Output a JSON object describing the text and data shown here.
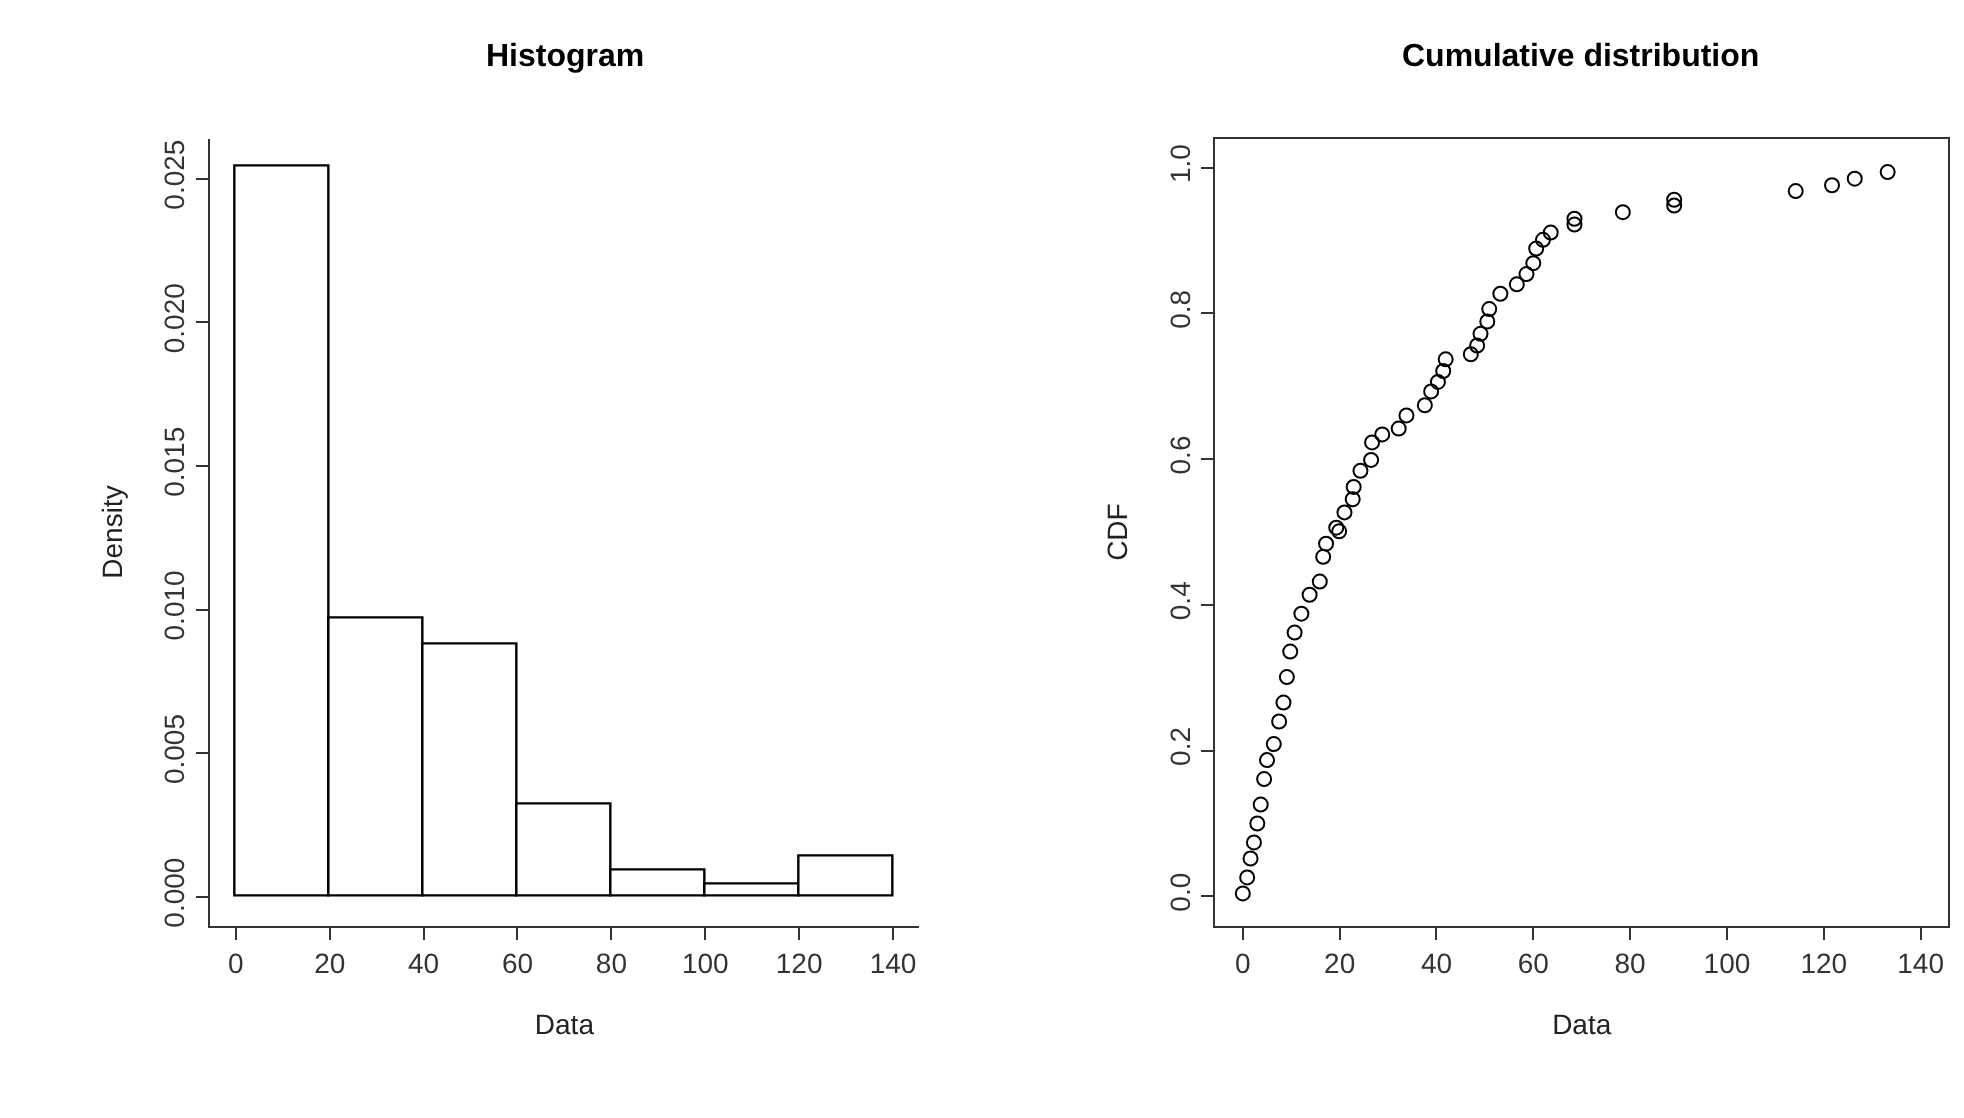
{
  "chart_data": [
    {
      "type": "histogram",
      "title": "Histogram",
      "xlabel": "Data",
      "ylabel": "Density",
      "color": "#ffffff",
      "bins": [
        0,
        20,
        40,
        60,
        80,
        100,
        120,
        140
      ],
      "values": [
        0.0254,
        0.0097,
        0.0088,
        0.0032,
        0.0009,
        0.0004,
        0.0014
      ],
      "xlim": [
        -5.6,
        145.6
      ],
      "ylim": [
        -0.001,
        0.0264
      ],
      "xticks": [
        0,
        20,
        40,
        60,
        80,
        100,
        120,
        140
      ],
      "yticks": [
        {
          "value": 0,
          "label": "0.000"
        },
        {
          "value": 0.005,
          "label": "0.005"
        },
        {
          "value": 0.01,
          "label": "0.010"
        },
        {
          "value": 0.015,
          "label": "0.015"
        },
        {
          "value": 0.02,
          "label": "0.020"
        },
        {
          "value": 0.025,
          "label": "0.025"
        }
      ]
    },
    {
      "type": "scatter",
      "title": "Cumulative distribution",
      "xlabel": "Data",
      "ylabel": "CDF",
      "marker": "circle",
      "series": [
        {
          "color": "#000000",
          "x": [
            0,
            0.9,
            1.6,
            2.3,
            3.0,
            3.7,
            4.4,
            5.0,
            6.4,
            7.5,
            8.4,
            9.1,
            9.8,
            10.7,
            12.1,
            13.8,
            15.9,
            16.6,
            17.2,
            19.3,
            19.9,
            21.0,
            22.7,
            22.9,
            24.3,
            26.5,
            26.7,
            28.8,
            32.2,
            33.8,
            37.6,
            38.9,
            40.3,
            41.4,
            41.9,
            47.1,
            48.4,
            49.1,
            50.5,
            50.9,
            53.2,
            56.6,
            58.6,
            60.0,
            60.6,
            62.0,
            63.6,
            68.5,
            68.5,
            78.5,
            89.1,
            89.1,
            114.2,
            121.7,
            126.4,
            133.2
          ],
          "values": [
            0.004,
            0.026,
            0.052,
            0.074,
            0.1,
            0.126,
            0.161,
            0.187,
            0.209,
            0.24,
            0.266,
            0.301,
            0.336,
            0.362,
            0.388,
            0.414,
            0.432,
            0.466,
            0.484,
            0.506,
            0.501,
            0.527,
            0.545,
            0.562,
            0.584,
            0.599,
            0.623,
            0.634,
            0.642,
            0.66,
            0.674,
            0.693,
            0.706,
            0.721,
            0.737,
            0.744,
            0.756,
            0.772,
            0.789,
            0.806,
            0.827,
            0.84,
            0.854,
            0.869,
            0.889,
            0.901,
            0.911,
            0.922,
            0.93,
            0.939,
            0.948,
            0.956,
            0.968,
            0.976,
            0.985,
            0.994
          ]
        }
      ],
      "xlim": [
        -5.7,
        145.7
      ],
      "ylim": [
        -0.04,
        1.04
      ],
      "xticks": [
        0,
        20,
        40,
        60,
        80,
        100,
        120,
        140
      ],
      "yticks": [
        {
          "value": 0,
          "label": "0.0"
        },
        {
          "value": 0.2,
          "label": "0.2"
        },
        {
          "value": 0.4,
          "label": "0.4"
        },
        {
          "value": 0.6,
          "label": "0.6"
        },
        {
          "value": 0.8,
          "label": "0.8"
        },
        {
          "value": 1,
          "label": "1.0"
        }
      ]
    }
  ]
}
